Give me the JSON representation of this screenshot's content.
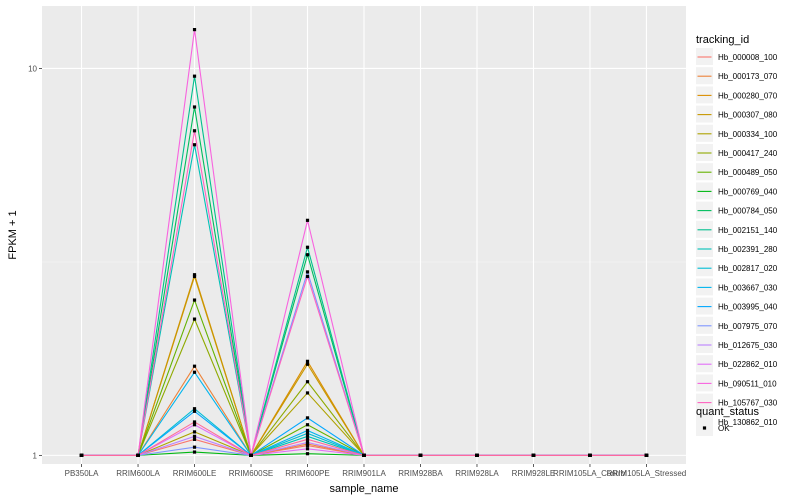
{
  "chart_data": {
    "type": "line",
    "xlabel": "sample_name",
    "ylabel": "FPKM + 1",
    "y_scale": "log10",
    "ylim": [
      0.95,
      14.5
    ],
    "grid": true,
    "legend_position": "right",
    "background": "#ebebeb",
    "categories": [
      "PB350LA",
      "RRIM600LA",
      "RRIM600LE",
      "RRIM600SE",
      "RRIM600PE",
      "RRIM901LA",
      "RRIM928BA",
      "RRIM928LA",
      "RRIM928LE",
      "RRIM105LA_Control",
      "RRIM105LA_Stressed"
    ],
    "y_ticks": [
      {
        "value": 1,
        "label": "1"
      },
      {
        "value": 10,
        "label": "10"
      }
    ],
    "legend_title": "tracking_id",
    "series": [
      {
        "name": "Hb_000008_100",
        "color": "#F8766D",
        "values": [
          1,
          1,
          1.1,
          1,
          1.06,
          1,
          1,
          1,
          1,
          1,
          1
        ]
      },
      {
        "name": "Hb_000173_070",
        "color": "#EC8239",
        "values": [
          1,
          1,
          1.7,
          1,
          1.07,
          1,
          1,
          1,
          1,
          1,
          1
        ]
      },
      {
        "name": "Hb_000280_070",
        "color": "#DB8E00",
        "values": [
          1,
          1,
          2.93,
          1,
          1.75,
          1,
          1,
          1,
          1,
          1,
          1
        ]
      },
      {
        "name": "Hb_000307_080",
        "color": "#C79800",
        "values": [
          1,
          1,
          2.9,
          1,
          1.72,
          1,
          1,
          1,
          1,
          1,
          1
        ]
      },
      {
        "name": "Hb_000334_100",
        "color": "#AEA200",
        "values": [
          1,
          1,
          1.15,
          1,
          1.45,
          1,
          1,
          1,
          1,
          1,
          1
        ]
      },
      {
        "name": "Hb_000417_240",
        "color": "#8FAA00",
        "values": [
          1,
          1,
          2.25,
          1,
          1.55,
          1,
          1,
          1,
          1,
          1,
          1
        ]
      },
      {
        "name": "Hb_000489_050",
        "color": "#64B200",
        "values": [
          1,
          1,
          2.52,
          1,
          1.2,
          1,
          1,
          1,
          1,
          1,
          1
        ]
      },
      {
        "name": "Hb_000769_040",
        "color": "#00B712",
        "values": [
          1,
          1,
          1.02,
          1,
          1.01,
          1,
          1,
          1,
          1,
          1,
          1
        ]
      },
      {
        "name": "Hb_000784_050",
        "color": "#00BD5C",
        "values": [
          1,
          1,
          7.95,
          1,
          3.3,
          1,
          1,
          1,
          1,
          1,
          1
        ]
      },
      {
        "name": "Hb_002151_140",
        "color": "#00C08E",
        "values": [
          1,
          1,
          9.55,
          1,
          3.45,
          1,
          1,
          1,
          1,
          1,
          1
        ]
      },
      {
        "name": "Hb_002391_280",
        "color": "#00C1B7",
        "values": [
          1,
          1,
          6.35,
          1,
          1.12,
          1,
          1,
          1,
          1,
          1,
          1
        ]
      },
      {
        "name": "Hb_002817_020",
        "color": "#00BDD4",
        "values": [
          1,
          1,
          1.32,
          1,
          1.14,
          1,
          1,
          1,
          1,
          1,
          1
        ]
      },
      {
        "name": "Hb_003667_030",
        "color": "#00B5EE",
        "values": [
          1,
          1,
          1.64,
          1,
          1.16,
          1,
          1,
          1,
          1,
          1,
          1
        ]
      },
      {
        "name": "Hb_003995_040",
        "color": "#00A7FF",
        "values": [
          1,
          1,
          1.3,
          1,
          1.25,
          1,
          1,
          1,
          1,
          1,
          1
        ]
      },
      {
        "name": "Hb_007975_070",
        "color": "#7F96FF",
        "values": [
          1,
          1,
          1.05,
          1,
          2.98,
          1,
          1,
          1,
          1,
          1,
          1
        ]
      },
      {
        "name": "Hb_012675_030",
        "color": "#BC81FF",
        "values": [
          1,
          1,
          1.12,
          1,
          1.08,
          1,
          1,
          1,
          1,
          1,
          1
        ]
      },
      {
        "name": "Hb_022862_010",
        "color": "#E26EF7",
        "values": [
          1,
          1,
          1.2,
          1,
          1.04,
          1,
          1,
          1,
          1,
          1,
          1
        ]
      },
      {
        "name": "Hb_090511_010",
        "color": "#F863DF",
        "values": [
          1,
          1,
          12.6,
          1,
          4.05,
          1,
          1,
          1,
          1,
          1,
          1
        ]
      },
      {
        "name": "Hb_105767_030",
        "color": "#FF62BF",
        "values": [
          1,
          1,
          6.9,
          1,
          2.9,
          1,
          1,
          1,
          1,
          1,
          1
        ]
      },
      {
        "name": "Hb_130862_010",
        "color": "#FF6A98",
        "values": [
          1,
          1,
          1.22,
          1,
          1.1,
          1,
          1,
          1,
          1,
          1,
          1
        ]
      }
    ],
    "quant_legend": {
      "title": "quant_status",
      "entries": [
        "OK"
      ]
    }
  }
}
